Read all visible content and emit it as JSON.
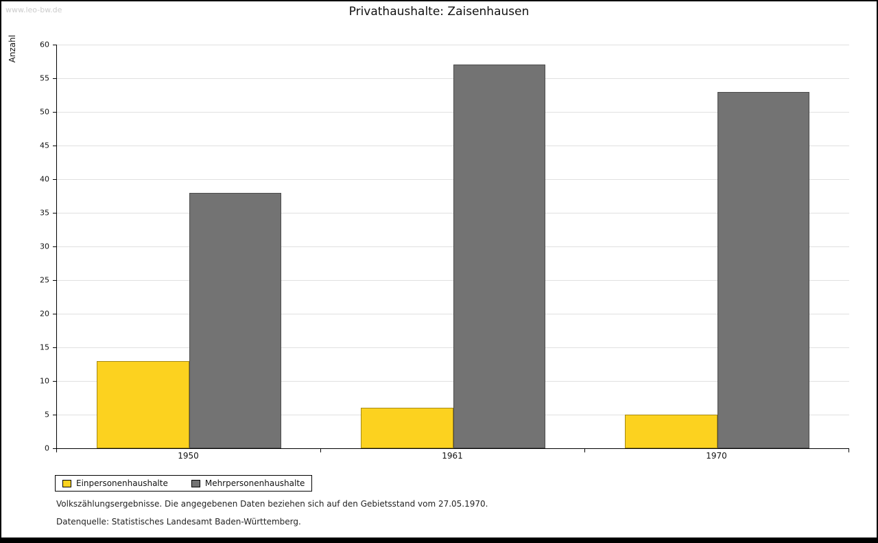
{
  "watermark": "www.leo-bw.de",
  "title": "Privathaushalte: Zaisenhausen",
  "chart_data": {
    "type": "bar",
    "categories": [
      "1950",
      "1961",
      "1970"
    ],
    "series": [
      {
        "name": "Einpersonenhaushalte",
        "color": "#fcd21f",
        "values": [
          13,
          6,
          5
        ]
      },
      {
        "name": "Mehrpersonenhaushalte",
        "color": "#737373",
        "values": [
          38,
          57,
          53
        ]
      }
    ],
    "title": "Privathaushalte: Zaisenhausen",
    "xlabel": "",
    "ylabel": "Anzahl",
    "ylim": [
      0,
      60
    ],
    "ytick_step": 5,
    "grid": true,
    "legend_position": "bottom-left"
  },
  "footnotes": {
    "line1": "Volkszählungsergebnisse. Die angegebenen Daten beziehen sich auf den Gebietsstand vom 27.05.1970.",
    "line2": "Datenquelle: Statistisches Landesamt Baden-Württemberg."
  }
}
